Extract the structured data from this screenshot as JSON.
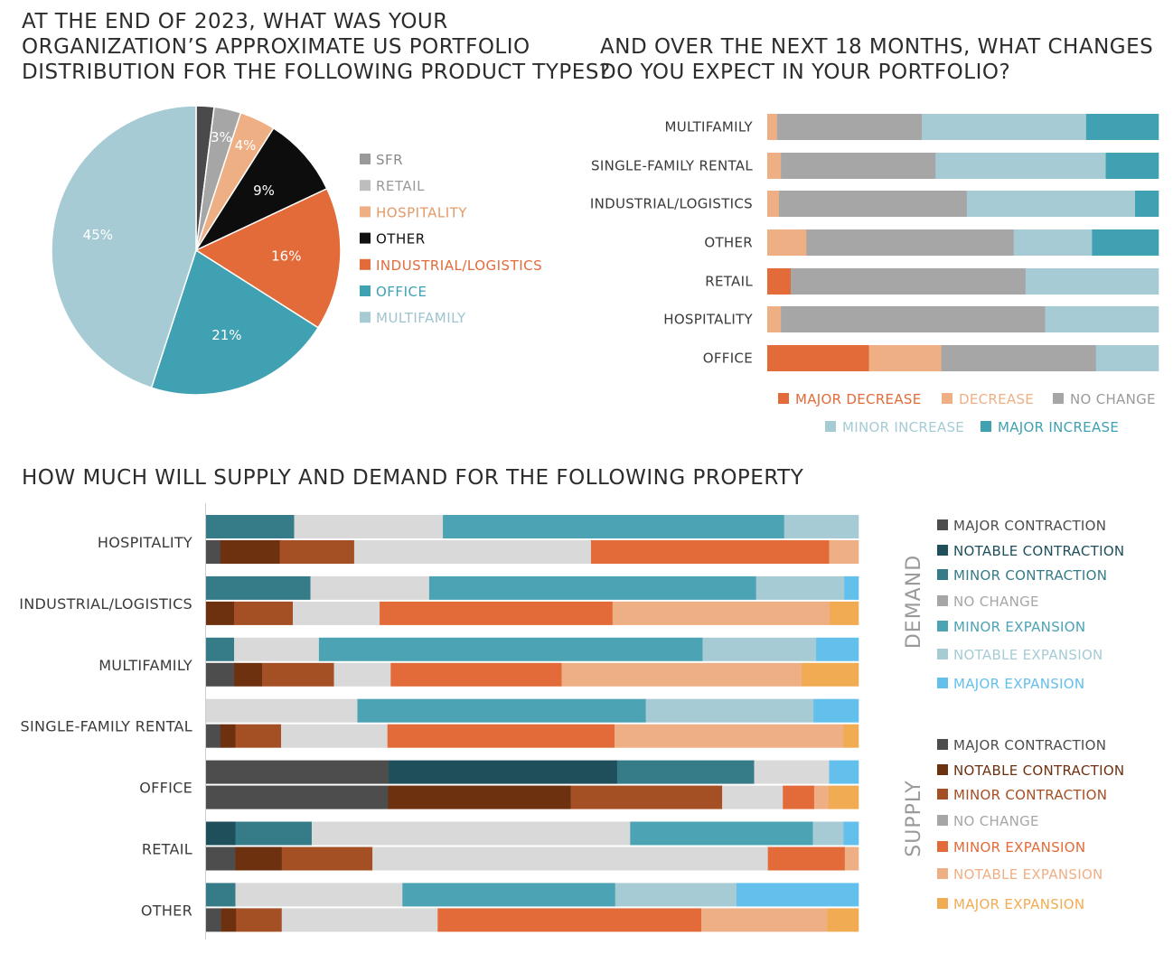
{
  "chart_data": [
    {
      "type": "pie",
      "title_lines": [
        "AT THE END OF 2023, WHAT WAS YOUR",
        "ORGANIZATION’S APPROXIMATE US PORTFOLIO",
        "DISTRIBUTION FOR THE FOLLOWING PRODUCT TYPES?"
      ],
      "slices": [
        {
          "name": "SFR",
          "value": 2,
          "label": "",
          "color": "#4a4a4a"
        },
        {
          "name": "RETAIL",
          "value": 3,
          "label": "3%",
          "color": "#a6a6a6"
        },
        {
          "name": "HOSPITALITY",
          "value": 4,
          "label": "4%",
          "color": "#efaf85"
        },
        {
          "name": "OTHER",
          "value": 9,
          "label": "9%",
          "color": "#0d0d0d"
        },
        {
          "name": "INDUSTRIAL/LOGISTICS",
          "value": 16,
          "label": "16%",
          "color": "#e26b39"
        },
        {
          "name": "OFFICE",
          "value": 21,
          "label": "21%",
          "color": "#3fa1b1"
        },
        {
          "name": "MULTIFAMILY",
          "value": 45,
          "label": "45%",
          "color": "#a6cbd4"
        }
      ],
      "legend": [
        {
          "label": "SFR",
          "color": "#9a9a9a",
          "text_color": "#8a8a8a"
        },
        {
          "label": "RETAIL",
          "color": "#bdbdbd",
          "text_color": "#9a9a9a"
        },
        {
          "label": "HOSPITALITY",
          "color": "#efaf85",
          "text_color": "#e39a68"
        },
        {
          "label": "OTHER",
          "color": "#111111",
          "text_color": "#111111"
        },
        {
          "label": "INDUSTRIAL/LOGISTICS",
          "color": "#e26b39",
          "text_color": "#e26b39"
        },
        {
          "label": "OFFICE",
          "color": "#3fa1b1",
          "text_color": "#3fa1b1"
        },
        {
          "label": "MULTIFAMILY",
          "color": "#a6cbd4",
          "text_color": "#9fc4ce"
        }
      ]
    },
    {
      "type": "bar",
      "orientation": "horizontal",
      "stacked": "100%",
      "title_lines": [
        "AND OVER THE NEXT 18 MONTHS, WHAT CHANGES",
        "DO YOU EXPECT IN YOUR PORTFOLIO?"
      ],
      "categories": [
        "MULTIFAMILY",
        "SINGLE-FAMILY RENTAL",
        "INDUSTRIAL/LOGISTICS",
        "OTHER",
        "RETAIL",
        "HOSPITALITY",
        "OFFICE"
      ],
      "series": [
        {
          "name": "MAJOR DECREASE",
          "color": "#e26b39",
          "values": [
            0,
            0,
            0,
            0,
            6,
            0,
            26
          ]
        },
        {
          "name": "DECREASE",
          "color": "#efaf85",
          "values": [
            2.5,
            3.5,
            3,
            10,
            0,
            3.5,
            18.5
          ]
        },
        {
          "name": "NO CHANGE",
          "color": "#a6a6a6",
          "values": [
            37,
            39.5,
            48,
            53,
            60,
            67.5,
            39.5
          ]
        },
        {
          "name": "MINOR INCREASE",
          "color": "#a6cbd4",
          "values": [
            42,
            43.5,
            43,
            20,
            34,
            29,
            16
          ]
        },
        {
          "name": "MAJOR INCREASE",
          "color": "#3fa1b1",
          "values": [
            18.5,
            13.5,
            6,
            17,
            0,
            0,
            0
          ]
        }
      ],
      "legend": [
        {
          "label": "MAJOR DECREASE",
          "color": "#e26b39",
          "text_color": "#e26b39"
        },
        {
          "label": "DECREASE",
          "color": "#efaf85",
          "text_color": "#efaf85"
        },
        {
          "label": "NO CHANGE",
          "color": "#a6a6a6",
          "text_color": "#9a9a9a"
        },
        {
          "label": "MINOR INCREASE",
          "color": "#a6cbd4",
          "text_color": "#a6cbd4"
        },
        {
          "label": "MAJOR INCREASE",
          "color": "#3fa1b1",
          "text_color": "#3fa1b1"
        }
      ]
    },
    {
      "type": "bar",
      "orientation": "horizontal",
      "stacked": "100%",
      "title_lines": [
        "HOW MUCH WILL SUPPLY AND DEMAND FOR THE FOLLOWING PROPERTY"
      ],
      "categories": [
        "HOSPITALITY",
        "INDUSTRIAL/LOGISTICS",
        "MULTIFAMILY",
        "SINGLE-FAMILY RENTAL",
        "OFFICE",
        "RETAIL",
        "OTHER"
      ],
      "groups": [
        {
          "name": "DEMAND",
          "series": [
            {
              "name": "MAJOR CONTRACTION",
              "color": "#4d4d4d",
              "values": [
                0,
                0,
                0,
                0,
                28,
                0,
                0
              ]
            },
            {
              "name": "NOTABLE CONTRACTION",
              "color": "#1e4f5b",
              "values": [
                0,
                0,
                0,
                0,
                35,
                4.5,
                0
              ]
            },
            {
              "name": "MINOR CONTRACTION",
              "color": "#367c88",
              "values": [
                13.5,
                16,
                4.3,
                0,
                21,
                11.7,
                4.5
              ]
            },
            {
              "name": "NO CHANGE",
              "color": "#d9d9d9",
              "values": [
                22.8,
                18.2,
                13,
                23.2,
                11.5,
                48.8,
                25.6
              ]
            },
            {
              "name": "MINOR EXPANSION",
              "color": "#4ba3b4",
              "values": [
                52.3,
                50.1,
                58.8,
                44.2,
                0,
                28,
                32.6
              ]
            },
            {
              "name": "NOTABLE EXPANSION",
              "color": "#a6cbd4",
              "values": [
                11.4,
                13.5,
                17.4,
                25.7,
                0,
                4.7,
                18.6
              ]
            },
            {
              "name": "MAJOR EXPANSION",
              "color": "#63c0ec",
              "values": [
                0,
                2.2,
                6.5,
                6.9,
                4.5,
                2.3,
                18.7
              ]
            }
          ]
        },
        {
          "name": "SUPPLY",
          "series": [
            {
              "name": "MAJOR CONTRACTION",
              "color": "#4d4d4d",
              "values": [
                2.2,
                0,
                4.3,
                2.2,
                27.9,
                4.5,
                2.3
              ]
            },
            {
              "name": "NOTABLE CONTRACTION",
              "color": "#6e3110",
              "values": [
                9.1,
                4.3,
                4.3,
                2.3,
                28,
                7.1,
                2.3
              ]
            },
            {
              "name": "MINOR CONTRACTION",
              "color": "#a54f24",
              "values": [
                11.4,
                9,
                11,
                7,
                23.2,
                13.9,
                7
              ]
            },
            {
              "name": "NO CHANGE",
              "color": "#d9d9d9",
              "values": [
                36.3,
                13.3,
                8.7,
                16.3,
                9.3,
                60.6,
                23.9
              ]
            },
            {
              "name": "MINOR EXPANSION",
              "color": "#e26b39",
              "values": [
                36.5,
                35.7,
                26.2,
                34.8,
                4.8,
                11.8,
                40.4
              ]
            },
            {
              "name": "NOTABLE EXPANSION",
              "color": "#efaf85",
              "values": [
                4.5,
                33.3,
                36.8,
                35.1,
                2.2,
                2.1,
                19.3
              ]
            },
            {
              "name": "MAJOR EXPANSION",
              "color": "#f1ac53",
              "values": [
                0,
                4.4,
                8.7,
                2.3,
                4.6,
                0,
                4.8
              ]
            }
          ]
        }
      ],
      "legend": [
        {
          "group": "DEMAND",
          "items": [
            {
              "label": "MAJOR CONTRACTION",
              "color": "#4d4d4d",
              "text_color": "#4d4d4d"
            },
            {
              "label": "NOTABLE CONTRACTION",
              "color": "#1e4f5b",
              "text_color": "#1e4f5b"
            },
            {
              "label": "MINOR CONTRACTION",
              "color": "#367c88",
              "text_color": "#367c88"
            },
            {
              "label": "NO CHANGE",
              "color": "#a6a6a6",
              "text_color": "#a6a6a6"
            },
            {
              "label": "MINOR EXPANSION",
              "color": "#4ba3b4",
              "text_color": "#4ba3b4"
            },
            {
              "label": "NOTABLE EXPANSION",
              "color": "#a6cbd4",
              "text_color": "#a6cbd4"
            },
            {
              "label": "MAJOR EXPANSION",
              "color": "#63c0ec",
              "text_color": "#63c0ec"
            }
          ]
        },
        {
          "group": "SUPPLY",
          "items": [
            {
              "label": "MAJOR CONTRACTION",
              "color": "#4d4d4d",
              "text_color": "#4d4d4d"
            },
            {
              "label": "NOTABLE CONTRACTION",
              "color": "#6e3110",
              "text_color": "#6e3110"
            },
            {
              "label": "MINOR CONTRACTION",
              "color": "#a54f24",
              "text_color": "#a54f24"
            },
            {
              "label": "NO CHANGE",
              "color": "#a6a6a6",
              "text_color": "#a6a6a6"
            },
            {
              "label": "MINOR EXPANSION",
              "color": "#e26b39",
              "text_color": "#e26b39"
            },
            {
              "label": "NOTABLE EXPANSION",
              "color": "#efaf85",
              "text_color": "#efaf85"
            },
            {
              "label": "MAJOR EXPANSION",
              "color": "#f1ac53",
              "text_color": "#f1ac53"
            }
          ]
        }
      ]
    }
  ]
}
